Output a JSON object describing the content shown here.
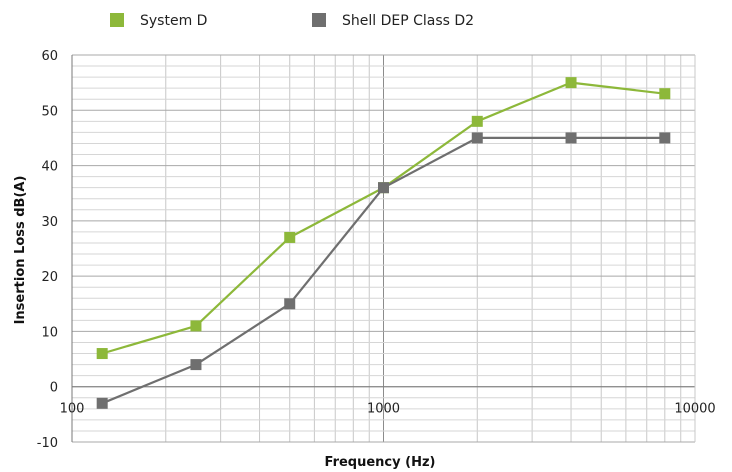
{
  "chart_data": {
    "type": "line",
    "title": "",
    "xlabel": "Frequency (Hz)",
    "ylabel": "Insertion Loss dB(A)",
    "x_scale": "log",
    "xlim": [
      100,
      10000
    ],
    "ylim": [
      -10,
      60
    ],
    "x_ticks": [
      100,
      1000,
      10000
    ],
    "x_tick_labels": [
      "100",
      "1000",
      "10000"
    ],
    "y_ticks": [
      -10,
      0,
      10,
      20,
      30,
      40,
      50,
      60
    ],
    "y_tick_labels": [
      "-10",
      "0",
      "10",
      "20",
      "30",
      "40",
      "50",
      "60"
    ],
    "grid": true,
    "legend_position": "top-left",
    "x": [
      125,
      250,
      500,
      1000,
      2000,
      4000,
      8000
    ],
    "series": [
      {
        "name": "System D",
        "color": "#8DB83A",
        "values": [
          6,
          11,
          27,
          36,
          48,
          55,
          53
        ]
      },
      {
        "name": "Shell DEP Class D2",
        "color": "#6F6F6F",
        "values": [
          -3,
          4,
          15,
          36,
          45,
          45,
          45
        ]
      }
    ]
  }
}
